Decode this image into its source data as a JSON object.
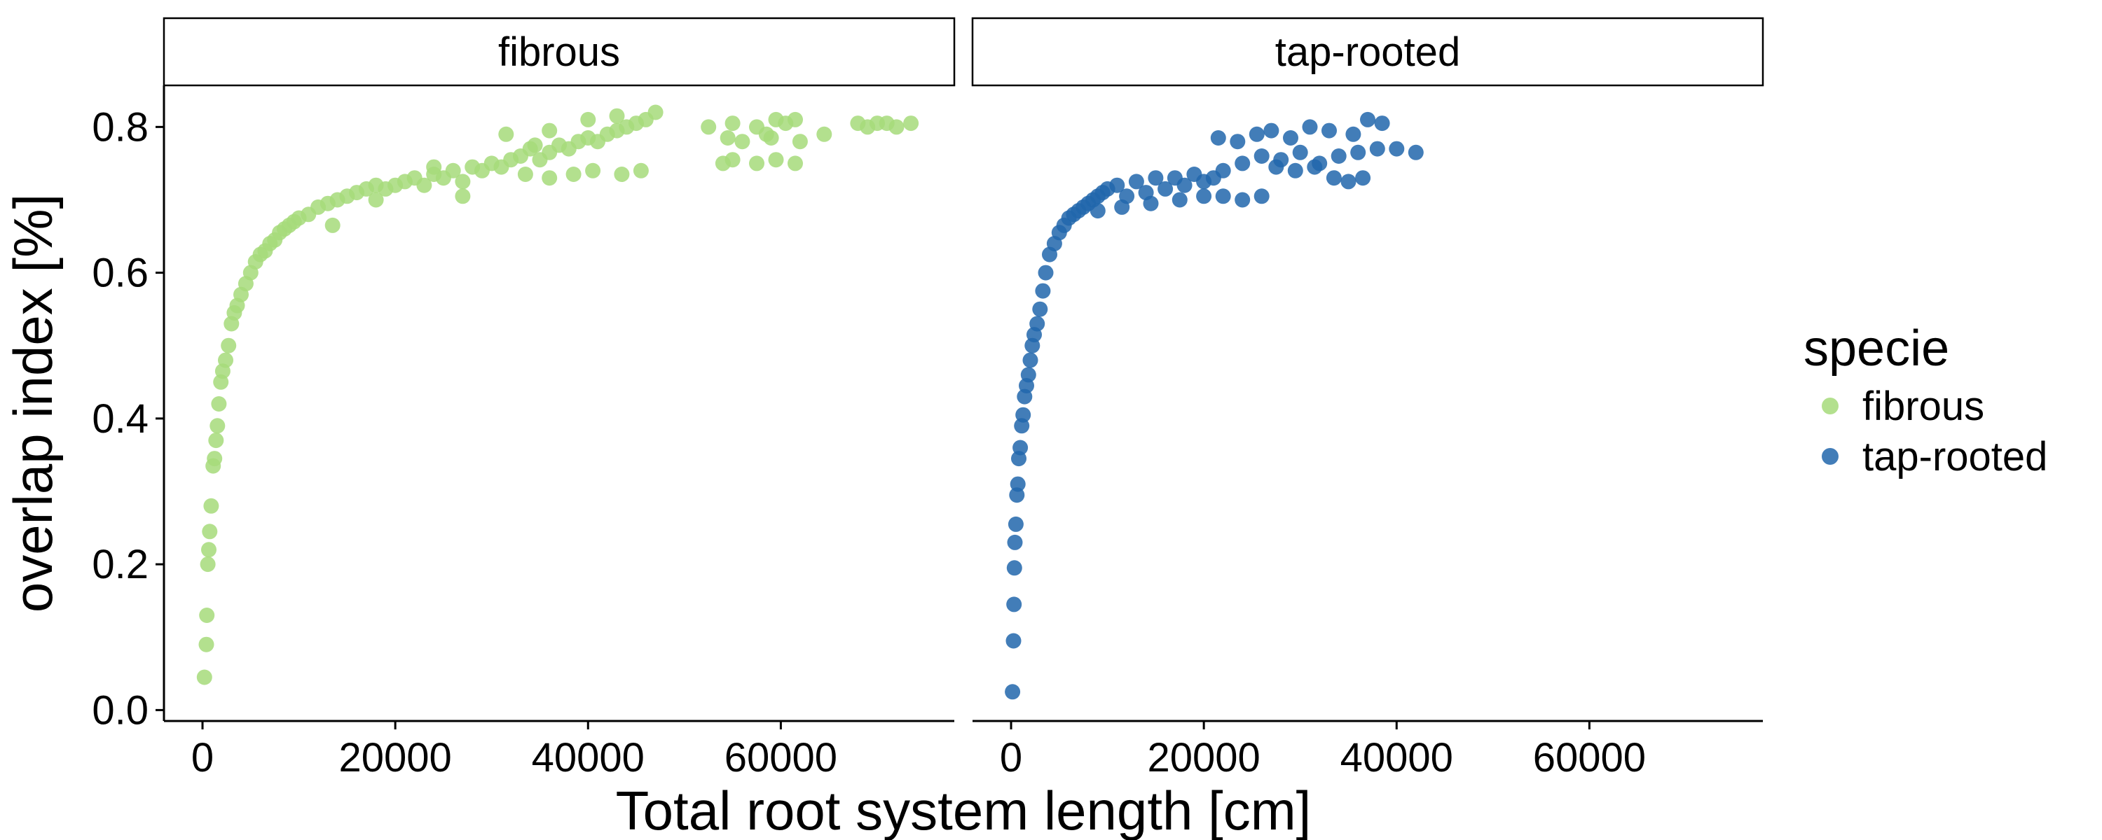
{
  "chart_data": {
    "type": "scatter",
    "xlabel": "Total root system length [cm]",
    "ylabel": "overlap index [%]",
    "xlim": [
      -4000,
      78000
    ],
    "ylim": [
      -0.015,
      0.857
    ],
    "x_ticks": [
      0,
      20000,
      40000,
      60000
    ],
    "x_tick_labels": [
      "0",
      "20000",
      "40000",
      "60000"
    ],
    "y_ticks": [
      0.0,
      0.2,
      0.4,
      0.6,
      0.8
    ],
    "y_tick_labels": [
      "0.0",
      "0.2",
      "0.4",
      "0.6",
      "0.8"
    ],
    "grid": false,
    "legend": {
      "title": "specie",
      "placement": "right"
    },
    "panels": [
      {
        "label": "fibrous",
        "series": "fibrous"
      },
      {
        "label": "tap-rooted",
        "series": "tap-rooted"
      }
    ],
    "series": [
      {
        "name": "fibrous",
        "color": "#a6db7a",
        "points": [
          [
            200,
            0.045
          ],
          [
            400,
            0.09
          ],
          [
            450,
            0.13
          ],
          [
            550,
            0.2
          ],
          [
            650,
            0.22
          ],
          [
            750,
            0.245
          ],
          [
            900,
            0.28
          ],
          [
            1100,
            0.335
          ],
          [
            1250,
            0.345
          ],
          [
            1400,
            0.37
          ],
          [
            1550,
            0.39
          ],
          [
            1700,
            0.42
          ],
          [
            1900,
            0.45
          ],
          [
            2100,
            0.465
          ],
          [
            2400,
            0.48
          ],
          [
            2700,
            0.5
          ],
          [
            3000,
            0.53
          ],
          [
            3300,
            0.545
          ],
          [
            3600,
            0.555
          ],
          [
            4000,
            0.57
          ],
          [
            4500,
            0.585
          ],
          [
            5000,
            0.6
          ],
          [
            5500,
            0.615
          ],
          [
            6000,
            0.625
          ],
          [
            6500,
            0.63
          ],
          [
            7000,
            0.64
          ],
          [
            7500,
            0.645
          ],
          [
            8000,
            0.655
          ],
          [
            8500,
            0.66
          ],
          [
            9000,
            0.665
          ],
          [
            9500,
            0.67
          ],
          [
            10000,
            0.675
          ],
          [
            11000,
            0.68
          ],
          [
            12000,
            0.69
          ],
          [
            13000,
            0.695
          ],
          [
            14000,
            0.7
          ],
          [
            15000,
            0.705
          ],
          [
            16000,
            0.71
          ],
          [
            17000,
            0.715
          ],
          [
            18000,
            0.72
          ],
          [
            19000,
            0.715
          ],
          [
            20000,
            0.72
          ],
          [
            21000,
            0.725
          ],
          [
            22000,
            0.73
          ],
          [
            23000,
            0.72
          ],
          [
            24000,
            0.735
          ],
          [
            25000,
            0.73
          ],
          [
            26000,
            0.74
          ],
          [
            27000,
            0.725
          ],
          [
            28000,
            0.745
          ],
          [
            29000,
            0.74
          ],
          [
            30000,
            0.75
          ],
          [
            31000,
            0.745
          ],
          [
            32000,
            0.755
          ],
          [
            33000,
            0.76
          ],
          [
            34000,
            0.77
          ],
          [
            35000,
            0.755
          ],
          [
            36000,
            0.765
          ],
          [
            37000,
            0.775
          ],
          [
            38000,
            0.77
          ],
          [
            39000,
            0.78
          ],
          [
            40000,
            0.785
          ],
          [
            41000,
            0.78
          ],
          [
            42000,
            0.79
          ],
          [
            43000,
            0.795
          ],
          [
            44000,
            0.8
          ],
          [
            45000,
            0.805
          ],
          [
            46000,
            0.81
          ],
          [
            13500,
            0.665
          ],
          [
            18000,
            0.7
          ],
          [
            24000,
            0.745
          ],
          [
            27000,
            0.705
          ],
          [
            33500,
            0.735
          ],
          [
            36000,
            0.73
          ],
          [
            38500,
            0.735
          ],
          [
            40500,
            0.74
          ],
          [
            43500,
            0.735
          ],
          [
            45500,
            0.74
          ],
          [
            36000,
            0.795
          ],
          [
            40000,
            0.81
          ],
          [
            43000,
            0.815
          ],
          [
            47000,
            0.82
          ],
          [
            31500,
            0.79
          ],
          [
            34500,
            0.775
          ],
          [
            52500,
            0.8
          ],
          [
            55000,
            0.805
          ],
          [
            57500,
            0.8
          ],
          [
            58500,
            0.79
          ],
          [
            59500,
            0.81
          ],
          [
            60500,
            0.805
          ],
          [
            61500,
            0.81
          ],
          [
            64500,
            0.79
          ],
          [
            54500,
            0.785
          ],
          [
            56000,
            0.78
          ],
          [
            59000,
            0.785
          ],
          [
            62000,
            0.78
          ],
          [
            54000,
            0.75
          ],
          [
            55000,
            0.755
          ],
          [
            57500,
            0.75
          ],
          [
            59500,
            0.755
          ],
          [
            61500,
            0.75
          ],
          [
            68000,
            0.805
          ],
          [
            69000,
            0.8
          ],
          [
            70000,
            0.805
          ],
          [
            71000,
            0.805
          ],
          [
            72000,
            0.8
          ],
          [
            73500,
            0.805
          ]
        ]
      },
      {
        "name": "tap-rooted",
        "color": "#2166ac",
        "points": [
          [
            150,
            0.025
          ],
          [
            250,
            0.095
          ],
          [
            300,
            0.145
          ],
          [
            350,
            0.195
          ],
          [
            400,
            0.23
          ],
          [
            500,
            0.255
          ],
          [
            600,
            0.295
          ],
          [
            700,
            0.31
          ],
          [
            800,
            0.345
          ],
          [
            950,
            0.36
          ],
          [
            1100,
            0.39
          ],
          [
            1250,
            0.405
          ],
          [
            1400,
            0.43
          ],
          [
            1600,
            0.445
          ],
          [
            1800,
            0.46
          ],
          [
            2000,
            0.48
          ],
          [
            2200,
            0.5
          ],
          [
            2400,
            0.515
          ],
          [
            2700,
            0.53
          ],
          [
            3000,
            0.55
          ],
          [
            3300,
            0.575
          ],
          [
            3600,
            0.6
          ],
          [
            4000,
            0.625
          ],
          [
            4500,
            0.64
          ],
          [
            5000,
            0.655
          ],
          [
            5500,
            0.665
          ],
          [
            6000,
            0.675
          ],
          [
            6500,
            0.68
          ],
          [
            7000,
            0.685
          ],
          [
            7500,
            0.69
          ],
          [
            8000,
            0.695
          ],
          [
            8500,
            0.7
          ],
          [
            9000,
            0.705
          ],
          [
            9500,
            0.71
          ],
          [
            10000,
            0.715
          ],
          [
            11000,
            0.72
          ],
          [
            12000,
            0.705
          ],
          [
            13000,
            0.725
          ],
          [
            14000,
            0.71
          ],
          [
            15000,
            0.73
          ],
          [
            16000,
            0.715
          ],
          [
            17000,
            0.73
          ],
          [
            18000,
            0.72
          ],
          [
            19000,
            0.735
          ],
          [
            20000,
            0.725
          ],
          [
            21000,
            0.73
          ],
          [
            9000,
            0.685
          ],
          [
            11500,
            0.69
          ],
          [
            14500,
            0.695
          ],
          [
            17500,
            0.7
          ],
          [
            20000,
            0.705
          ],
          [
            22000,
            0.705
          ],
          [
            24000,
            0.7
          ],
          [
            26000,
            0.705
          ],
          [
            22000,
            0.74
          ],
          [
            24000,
            0.75
          ],
          [
            26000,
            0.76
          ],
          [
            28000,
            0.755
          ],
          [
            30000,
            0.765
          ],
          [
            32000,
            0.75
          ],
          [
            34000,
            0.76
          ],
          [
            36000,
            0.765
          ],
          [
            38000,
            0.77
          ],
          [
            40000,
            0.77
          ],
          [
            42000,
            0.765
          ],
          [
            21500,
            0.785
          ],
          [
            23500,
            0.78
          ],
          [
            25500,
            0.79
          ],
          [
            27000,
            0.795
          ],
          [
            29000,
            0.785
          ],
          [
            31000,
            0.8
          ],
          [
            33000,
            0.795
          ],
          [
            35500,
            0.79
          ],
          [
            37000,
            0.81
          ],
          [
            38500,
            0.805
          ],
          [
            27500,
            0.745
          ],
          [
            29500,
            0.74
          ],
          [
            31500,
            0.745
          ],
          [
            33500,
            0.73
          ],
          [
            35000,
            0.725
          ],
          [
            36500,
            0.73
          ]
        ]
      }
    ]
  }
}
